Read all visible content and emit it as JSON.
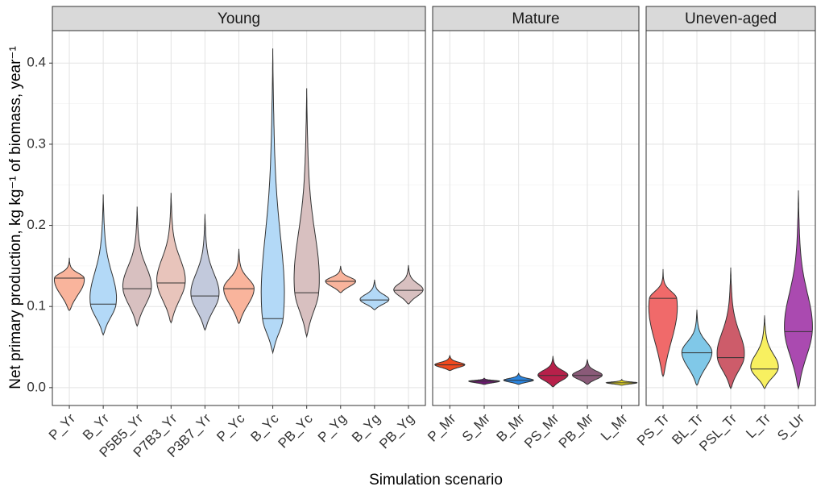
{
  "chart_data": {
    "type": "violin",
    "x_label": "Simulation scenario",
    "y_label": "Net primary production, kg kg⁻¹ of biomass, year⁻¹",
    "ylim": [
      -0.022,
      0.44
    ],
    "yticks": [
      {
        "value": 0,
        "label": "0.0"
      },
      0.1,
      0.2,
      0.3,
      0.4
    ],
    "grid": true,
    "panels": [
      {
        "title": "Young",
        "categories": [
          "P_Yr",
          "B_Yr",
          "P5B5_Yr",
          "P7B3_Yr",
          "P3B7_Yr",
          "P_Yc",
          "B_Yc",
          "PB_Yc",
          "P_Yg",
          "B_Yg",
          "PB_Yg"
        ],
        "colors": [
          "#f9b49c",
          "#b3d9f7",
          "#d8c0c0",
          "#e8c4bb",
          "#c2c9dc",
          "#f9b49c",
          "#b3d9f7",
          "#d8c0c0",
          "#f9b49c",
          "#b3d9f7",
          "#d8c0c0"
        ],
        "min": [
          0.095,
          0.065,
          0.076,
          0.08,
          0.071,
          0.079,
          0.043,
          0.063,
          0.117,
          0.096,
          0.103
        ],
        "max": [
          0.16,
          0.238,
          0.223,
          0.24,
          0.214,
          0.171,
          0.418,
          0.369,
          0.15,
          0.133,
          0.151
        ],
        "median": [
          0.135,
          0.103,
          0.122,
          0.129,
          0.113,
          0.122,
          0.085,
          0.117,
          0.131,
          0.108,
          0.12
        ]
      },
      {
        "title": "Mature",
        "categories": [
          "P_Mr",
          "S_Mr",
          "B_Mr",
          "PS_Mr",
          "PB_Mr",
          "L_Mr"
        ],
        "colors": [
          "#f04a1e",
          "#6a1a6e",
          "#2a85e0",
          "#b7204a",
          "#8a5a78",
          "#f0e020"
        ],
        "min": [
          0.021,
          0.004,
          0.004,
          0.001,
          0.004,
          0.003
        ],
        "max": [
          0.04,
          0.012,
          0.018,
          0.039,
          0.035,
          0.01
        ],
        "median": [
          0.028,
          0.008,
          0.009,
          0.015,
          0.015,
          0.006
        ]
      },
      {
        "title": "Uneven-aged",
        "categories": [
          "PS_Tr",
          "BL_Tr",
          "PSL_Tr",
          "L_Tr",
          "S_Ur"
        ],
        "colors": [
          "#f06a6a",
          "#80c8e8",
          "#cd5c6a",
          "#f8f060",
          "#aa4ab0"
        ],
        "min": [
          0.014,
          0.003,
          -0.001,
          -0.001,
          -0.001
        ],
        "max": [
          0.146,
          0.096,
          0.148,
          0.089,
          0.243
        ],
        "median": [
          0.11,
          0.043,
          0.037,
          0.023,
          0.069
        ]
      }
    ]
  }
}
